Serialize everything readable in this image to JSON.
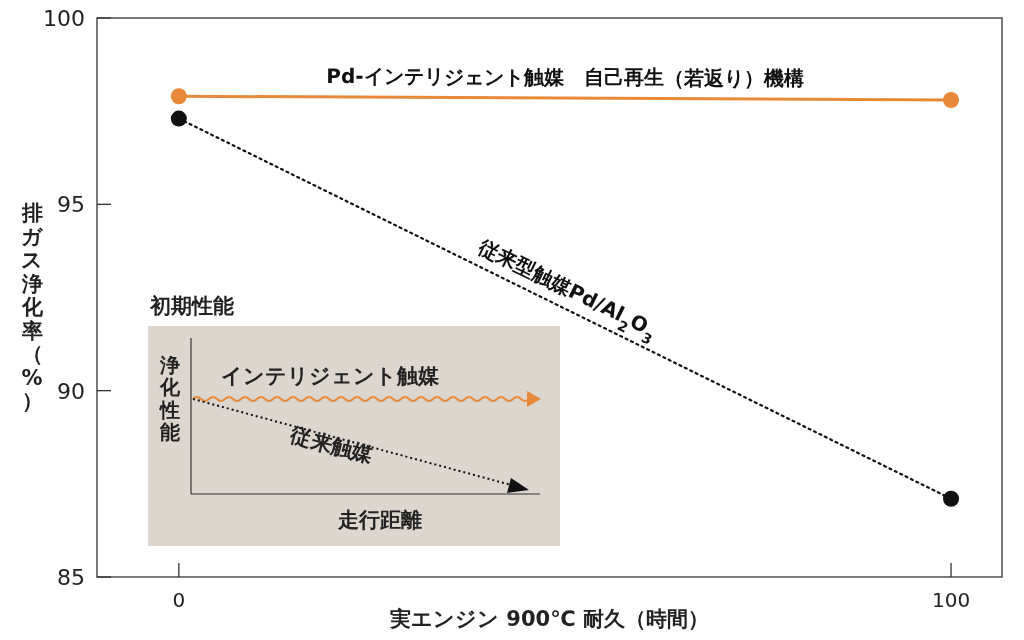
{
  "chart_data": {
    "type": "line",
    "x": [
      0,
      100
    ],
    "series": [
      {
        "name": "Pd-インテリジェント触媒　自己再生（若返り）機構",
        "color": "#e8893a",
        "values": [
          97.9,
          97.8
        ],
        "line_style": "solid"
      },
      {
        "name": "従来型触媒Pd/Al$_{2}$O$_{3}$",
        "color": "#111111",
        "values": [
          97.3,
          87.1
        ],
        "line_style": "dotted"
      }
    ],
    "marker": "circle",
    "xlim": [
      -10.6,
      106.6
    ],
    "ylim": [
      85,
      100
    ],
    "xticks": [
      0,
      100
    ],
    "yticks": [
      85,
      90,
      95,
      100
    ],
    "xlabel": "実エンジン 900℃ 耐久（時間）",
    "ylabel": "排ガス浄化率（%）",
    "annotations": [
      "初期性能",
      "浄化性能",
      "インテリジェント触媒",
      "従来触媒",
      "走行距離"
    ]
  }
}
